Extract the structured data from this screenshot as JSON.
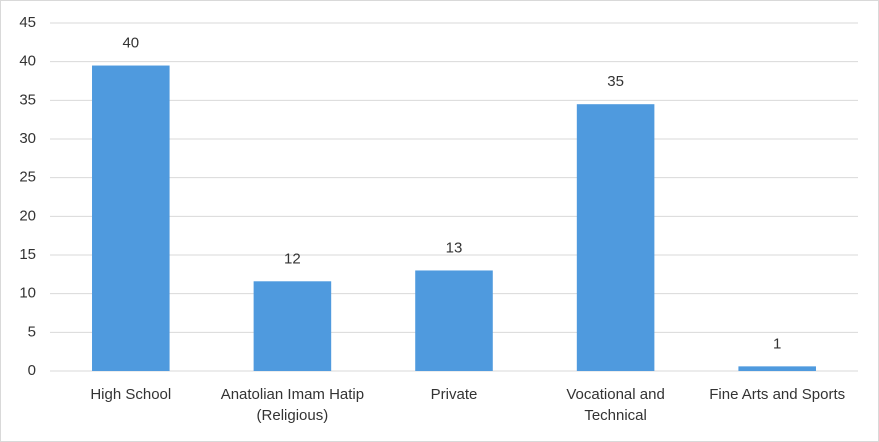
{
  "chart_data": {
    "type": "bar",
    "categories": [
      "High School",
      "Anatolian Imam Hatip (Religious)",
      "Private",
      "Vocational and Technical",
      "Fine Arts and Sports"
    ],
    "values": [
      39.5,
      11.6,
      13,
      34.5,
      0.6
    ],
    "value_labels": [
      "40",
      "12",
      "13",
      "35",
      "1"
    ],
    "color": "#4f9ade",
    "ylim": [
      0,
      45
    ],
    "yticks": [
      0,
      5,
      10,
      15,
      20,
      25,
      30,
      35,
      40,
      45
    ],
    "grid": true
  }
}
